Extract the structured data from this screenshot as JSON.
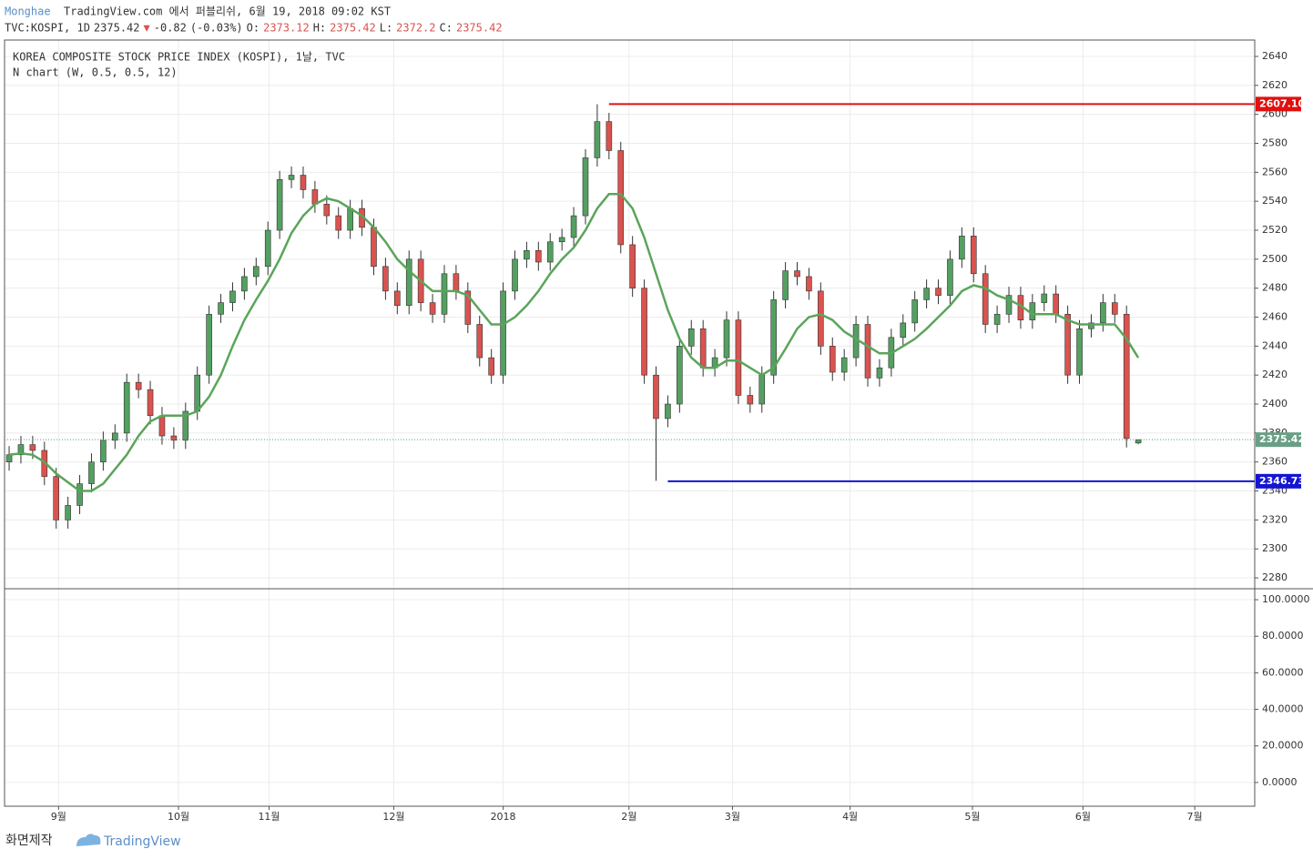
{
  "header": {
    "author": "Monghae",
    "published": "TradingView.com 에서 퍼블리쉬, 6월 19, 2018 09:02 KST",
    "symbol": "TVC:KOSPI, 1D",
    "arrow": "▼",
    "change": "-0.82",
    "change_pct": "(-0.03%)",
    "o": "O:",
    "h": "H:",
    "l": "L:",
    "c": "C:"
  },
  "footer": {
    "made_by": "화면제작",
    "brand": "TradingView"
  },
  "chart_data": [
    {
      "type": "candlestick",
      "title": "KOREA COMPOSITE STOCK PRICE INDEX (KOSPI), 1날, TVC",
      "subtitle": "N chart (W, 0.5, 0.5, 12)",
      "categories": [
        null,
        null,
        null,
        null,
        null,
        null,
        null,
        null,
        null,
        null,
        null,
        null,
        null,
        null,
        null,
        null,
        null,
        null,
        null,
        null,
        null,
        null,
        null,
        null,
        null,
        null,
        null,
        null,
        null,
        null,
        null,
        null,
        null,
        null,
        null,
        null,
        null,
        null,
        null,
        null,
        null,
        null,
        null,
        null,
        null,
        null,
        null,
        null,
        null,
        null,
        null,
        null,
        null,
        null,
        null,
        null,
        null,
        null,
        null,
        null,
        null,
        null,
        null,
        null,
        null,
        null,
        null,
        null,
        null,
        null,
        null,
        null,
        null,
        null,
        null,
        null,
        null,
        null,
        null,
        null,
        null,
        null,
        null,
        null,
        null,
        null,
        null,
        null,
        null,
        null,
        null,
        null,
        null,
        null,
        null,
        null,
        null
      ],
      "open": [
        2360,
        2365,
        2372,
        2368,
        2350,
        2320,
        2330,
        2345,
        2360,
        2375,
        2380,
        2415,
        2410,
        2392,
        2378,
        2375,
        2395,
        2420,
        2462,
        2470,
        2478,
        2488,
        2495,
        2520,
        2555,
        2558,
        2548,
        2538,
        2530,
        2520,
        2535,
        2522,
        2495,
        2478,
        2468,
        2500,
        2470,
        2462,
        2490,
        2478,
        2455,
        2432,
        2420,
        2478,
        2500,
        2506,
        2498,
        2512,
        2515,
        2530,
        2570,
        2595,
        2575,
        2510,
        2480,
        2420,
        2390,
        2400,
        2440,
        2452,
        2425,
        2432,
        2458,
        2406,
        2400,
        2420,
        2472,
        2492,
        2488,
        2478,
        2440,
        2422,
        2432,
        2455,
        2418,
        2425,
        2446,
        2456,
        2472,
        2480,
        2475,
        2500,
        2516,
        2490,
        2455,
        2462,
        2475,
        2458,
        2470,
        2476,
        2462,
        2420,
        2452,
        2456,
        2470,
        2462,
        2373.12
      ],
      "high": [
        2371,
        2378,
        2378,
        2374,
        2356,
        2336,
        2351,
        2366,
        2381,
        2386,
        2421,
        2421,
        2416,
        2398,
        2384,
        2401,
        2426,
        2468,
        2476,
        2484,
        2494,
        2501,
        2526,
        2561,
        2564,
        2564,
        2554,
        2544,
        2536,
        2541,
        2541,
        2528,
        2501,
        2484,
        2506,
        2506,
        2476,
        2496,
        2496,
        2484,
        2461,
        2438,
        2484,
        2506,
        2512,
        2512,
        2518,
        2521,
        2536,
        2576,
        2607,
        2601,
        2581,
        2516,
        2486,
        2426,
        2406,
        2446,
        2458,
        2458,
        2438,
        2464,
        2464,
        2412,
        2426,
        2478,
        2498,
        2498,
        2494,
        2484,
        2446,
        2438,
        2461,
        2461,
        2431,
        2452,
        2462,
        2478,
        2486,
        2486,
        2506,
        2522,
        2522,
        2496,
        2468,
        2481,
        2481,
        2476,
        2482,
        2482,
        2468,
        2458,
        2462,
        2476,
        2476,
        2468,
        2375.42
      ],
      "low": [
        2354,
        2359,
        2362,
        2344,
        2314,
        2314,
        2324,
        2339,
        2354,
        2369,
        2374,
        2404,
        2386,
        2372,
        2369,
        2369,
        2389,
        2414,
        2456,
        2464,
        2472,
        2482,
        2489,
        2514,
        2549,
        2542,
        2532,
        2524,
        2514,
        2514,
        2516,
        2489,
        2472,
        2462,
        2462,
        2464,
        2456,
        2456,
        2472,
        2449,
        2426,
        2414,
        2414,
        2472,
        2494,
        2492,
        2492,
        2506,
        2509,
        2524,
        2564,
        2569,
        2504,
        2474,
        2414,
        2347,
        2384,
        2394,
        2434,
        2419,
        2419,
        2426,
        2400,
        2394,
        2394,
        2414,
        2466,
        2482,
        2472,
        2434,
        2416,
        2416,
        2426,
        2412,
        2412,
        2419,
        2440,
        2450,
        2466,
        2469,
        2469,
        2494,
        2484,
        2449,
        2449,
        2456,
        2452,
        2452,
        2464,
        2456,
        2414,
        2414,
        2446,
        2450,
        2456,
        2370,
        2372.2
      ],
      "close": [
        2365,
        2372,
        2368,
        2350,
        2320,
        2330,
        2345,
        2360,
        2375,
        2380,
        2415,
        2410,
        2392,
        2378,
        2375,
        2395,
        2420,
        2462,
        2470,
        2478,
        2488,
        2495,
        2520,
        2555,
        2558,
        2548,
        2538,
        2530,
        2520,
        2535,
        2522,
        2495,
        2478,
        2468,
        2500,
        2470,
        2462,
        2490,
        2478,
        2455,
        2432,
        2420,
        2478,
        2500,
        2506,
        2498,
        2512,
        2515,
        2530,
        2570,
        2595,
        2575,
        2510,
        2480,
        2420,
        2390,
        2400,
        2440,
        2452,
        2425,
        2432,
        2458,
        2406,
        2400,
        2420,
        2472,
        2492,
        2488,
        2478,
        2440,
        2422,
        2432,
        2455,
        2418,
        2425,
        2446,
        2456,
        2472,
        2480,
        2475,
        2500,
        2516,
        2490,
        2455,
        2462,
        2475,
        2458,
        2470,
        2476,
        2462,
        2420,
        2452,
        2456,
        2470,
        2462,
        2376.24,
        2375.42
      ],
      "up_color": "#53a061",
      "down_color": "#d9534f",
      "ma": {
        "color": "#5aa55a",
        "values": [
          2365,
          2366,
          2365,
          2360,
          2352,
          2346,
          2340,
          2340,
          2345,
          2355,
          2365,
          2378,
          2388,
          2392,
          2392,
          2392,
          2395,
          2405,
          2420,
          2440,
          2458,
          2472,
          2485,
          2500,
          2518,
          2530,
          2538,
          2542,
          2540,
          2535,
          2530,
          2522,
          2512,
          2500,
          2492,
          2485,
          2478,
          2478,
          2478,
          2475,
          2465,
          2455,
          2455,
          2460,
          2468,
          2478,
          2490,
          2500,
          2508,
          2520,
          2535,
          2545,
          2545,
          2535,
          2515,
          2490,
          2465,
          2445,
          2432,
          2425,
          2425,
          2430,
          2430,
          2425,
          2420,
          2425,
          2438,
          2452,
          2460,
          2462,
          2458,
          2450,
          2445,
          2440,
          2435,
          2435,
          2440,
          2445,
          2452,
          2460,
          2468,
          2478,
          2482,
          2480,
          2475,
          2472,
          2468,
          2462,
          2462,
          2462,
          2458,
          2455,
          2455,
          2455,
          2455,
          2445,
          2432
        ]
      },
      "levels": [
        {
          "value": 2607.1,
          "label": "2607.10",
          "color": "#e01010"
        },
        {
          "value": 2346.73,
          "color": "#1414d4"
        }
      ],
      "xlim": [
        -0.39,
        105.9
      ],
      "xticks": [
        {
          "value": 4.2,
          "label": "9월"
        },
        {
          "value": 14.4,
          "label": "10월"
        },
        {
          "value": 22.1,
          "label": "11월"
        },
        {
          "value": 32.7,
          "label": "12월"
        },
        {
          "value": 42.0,
          "label": "2018"
        },
        {
          "value": 52.7,
          "label": "2월"
        },
        {
          "value": 61.5,
          "label": "3월"
        },
        {
          "value": 71.5,
          "label": "4월"
        },
        {
          "value": 81.9,
          "label": "5월"
        },
        {
          "value": 91.3,
          "label": "6월"
        },
        {
          "value": 100.8,
          "label": "7월"
        }
      ],
      "ylim": [
        2272.5,
        2651.3
      ],
      "yticks": [
        2280,
        2300,
        2320,
        2340,
        2360,
        2380,
        2400,
        2420,
        2440,
        2460,
        2480,
        2500,
        2520,
        2540,
        2560,
        2580,
        2600,
        2620,
        2640
      ],
      "grid": true
    },
    {
      "type": "indicator",
      "ylim": [
        -13,
        106
      ],
      "yticks": [
        {
          "value": 0,
          "label": "0.0000"
        },
        {
          "value": 20,
          "label": "20.0000"
        },
        {
          "value": 40,
          "label": "40.0000"
        },
        {
          "value": 60,
          "label": "60.0000"
        },
        {
          "value": 80,
          "label": "80.0000"
        },
        {
          "value": 100,
          "label": "100.0000"
        }
      ],
      "grid": true
    }
  ]
}
